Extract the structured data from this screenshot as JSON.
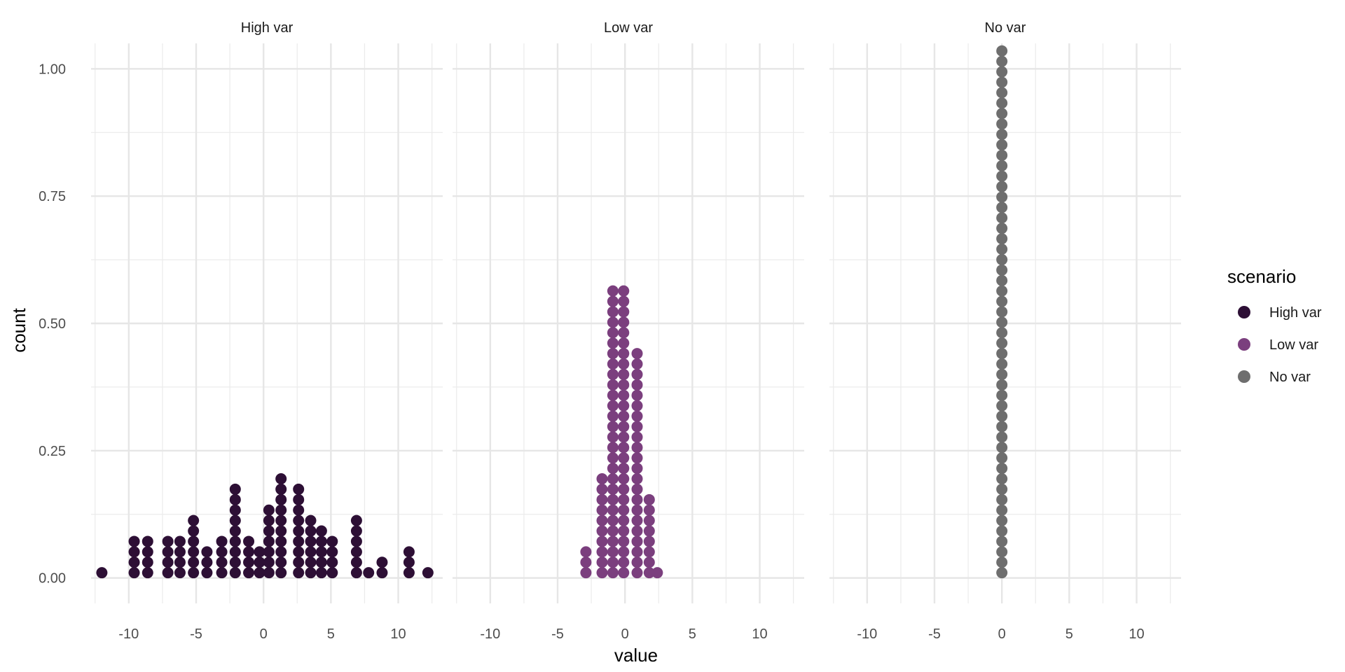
{
  "chart_data": {
    "type": "dotplot",
    "xlabel": "value",
    "ylabel": "count",
    "xlim": [
      -12.8,
      13.3
    ],
    "ylim": [
      -0.05,
      1.05
    ],
    "x_ticks": [
      -10,
      -5,
      0,
      5,
      10
    ],
    "x_tick_labels": [
      "-10",
      "-5",
      "0",
      "5",
      "10"
    ],
    "y_ticks": [
      0,
      0.25,
      0.5,
      0.75,
      1
    ],
    "y_tick_labels": [
      "0.00",
      "0.25",
      "0.50",
      "0.75",
      "1.00"
    ],
    "grid": true,
    "stack_step": 0.0205,
    "legend": {
      "title": "scenario",
      "position": "right",
      "entries": [
        {
          "label": "High var",
          "color": "#2d0f35"
        },
        {
          "label": "Low var",
          "color": "#7b3f7e"
        },
        {
          "label": "No var",
          "color": "#6e6e6e"
        }
      ]
    },
    "panels": [
      {
        "strip": "High var",
        "color": "#2d0f35",
        "stacks": [
          {
            "x": -12.0,
            "count": 1
          },
          {
            "x": -9.6,
            "count": 4
          },
          {
            "x": -8.6,
            "count": 4
          },
          {
            "x": -7.1,
            "count": 4
          },
          {
            "x": -6.2,
            "count": 4
          },
          {
            "x": -5.2,
            "count": 6
          },
          {
            "x": -4.2,
            "count": 3
          },
          {
            "x": -3.1,
            "count": 4
          },
          {
            "x": -2.1,
            "count": 9
          },
          {
            "x": -1.1,
            "count": 4
          },
          {
            "x": -0.3,
            "count": 3
          },
          {
            "x": 0.4,
            "count": 7
          },
          {
            "x": 1.3,
            "count": 10
          },
          {
            "x": 2.6,
            "count": 9
          },
          {
            "x": 3.5,
            "count": 6
          },
          {
            "x": 4.3,
            "count": 5
          },
          {
            "x": 5.1,
            "count": 4
          },
          {
            "x": 6.9,
            "count": 6
          },
          {
            "x": 7.8,
            "count": 1
          },
          {
            "x": 8.8,
            "count": 2
          },
          {
            "x": 10.8,
            "count": 3
          },
          {
            "x": 12.2,
            "count": 1
          }
        ]
      },
      {
        "strip": "Low var",
        "color": "#7b3f7e",
        "stacks": [
          {
            "x": -2.9,
            "count": 3
          },
          {
            "x": -1.7,
            "count": 10
          },
          {
            "x": -0.9,
            "count": 28
          },
          {
            "x": -0.1,
            "count": 28
          },
          {
            "x": 0.9,
            "count": 22
          },
          {
            "x": 1.8,
            "count": 8
          },
          {
            "x": 2.4,
            "count": 1
          }
        ]
      },
      {
        "strip": "No var",
        "color": "#6e6e6e",
        "stacks": [
          {
            "x": 0.0,
            "count": 51
          }
        ]
      }
    ]
  }
}
